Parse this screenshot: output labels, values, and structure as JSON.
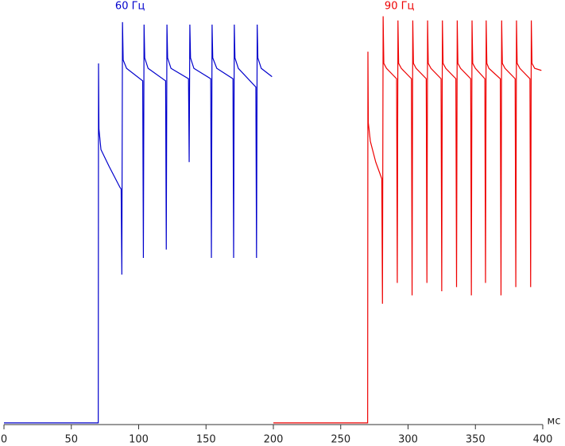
{
  "chart_data": {
    "type": "line",
    "x_label": "мс",
    "xlim": [
      0,
      400
    ],
    "xticks": [
      0,
      50,
      100,
      150,
      200,
      250,
      300,
      350,
      400
    ],
    "ylim": [
      0,
      100
    ],
    "grid": false,
    "series": [
      {
        "name": "60 Гц",
        "color": "#0000cc",
        "x": [
          0,
          70,
          70.2,
          70.5,
          72,
          78,
          86,
          87,
          87.5,
          88,
          88.5,
          91,
          103,
          103.5,
          104,
          104.5,
          107,
          120,
          120.5,
          121,
          121.5,
          124,
          137,
          137.5,
          138,
          138.5,
          141,
          153.5,
          154,
          154.5,
          155,
          158,
          170,
          170.5,
          171,
          171.5,
          174,
          187,
          187.5,
          188,
          188.5,
          191,
          197,
          199
        ],
        "values": [
          0.4,
          0.4,
          86.7,
          71,
          66,
          62,
          57,
          56.5,
          36,
          96.6,
          87.5,
          85.5,
          82.5,
          40,
          96,
          88,
          85.5,
          82.5,
          42,
          96,
          88,
          85.5,
          83,
          63,
          96,
          88,
          85.5,
          83,
          40,
          96,
          88,
          85.5,
          83,
          40,
          96,
          88,
          85.5,
          81,
          40,
          96,
          88,
          85.5,
          84,
          83.5
        ]
      },
      {
        "name": "90 Гц",
        "color": "#ee0000",
        "x": [
          200,
          270,
          270.2,
          270.5,
          272,
          276,
          280.5,
          281,
          281.5,
          282,
          284,
          291.5,
          292,
          292.5,
          293,
          295,
          302.5,
          303,
          303.5,
          304,
          306,
          313.5,
          314,
          314.5,
          315,
          317,
          324.5,
          325,
          325.5,
          326,
          328,
          335.5,
          336,
          336.5,
          337,
          339,
          346.5,
          347,
          347.5,
          348,
          350,
          357,
          357.5,
          358,
          358.5,
          360,
          368.5,
          369,
          369.5,
          370,
          372,
          379.5,
          380,
          380.5,
          381,
          383,
          390.5,
          391,
          391.5,
          392,
          394,
          399
        ],
        "values": [
          0.4,
          0.4,
          89.5,
          72.4,
          68,
          63,
          59,
          29,
          98,
          86.7,
          85.5,
          83,
          34,
          97,
          86.7,
          85.5,
          83,
          31,
          97,
          86.7,
          85.5,
          83,
          34,
          97,
          86.7,
          85.5,
          83,
          32,
          97,
          86.7,
          85.5,
          83,
          33,
          97,
          86.7,
          85.5,
          83,
          31,
          97,
          86.7,
          85.5,
          83,
          34,
          97,
          86.7,
          85.5,
          83,
          31,
          97,
          86.7,
          85.5,
          83,
          33,
          97,
          86.7,
          85.5,
          83,
          33,
          97,
          86.7,
          85.5,
          85
        ]
      }
    ]
  }
}
